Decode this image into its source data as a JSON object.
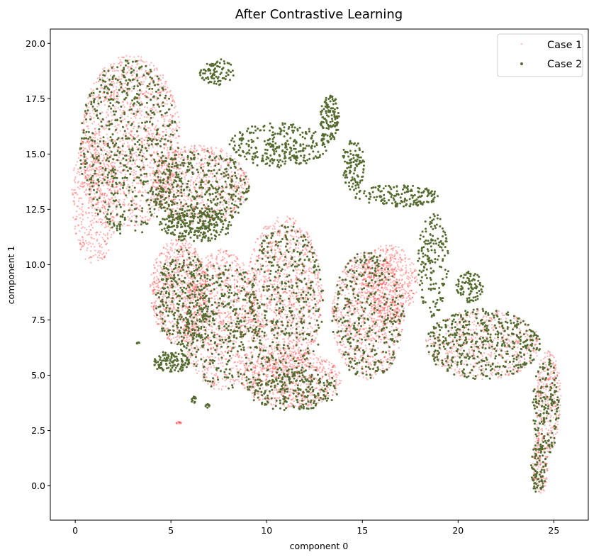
{
  "chart_data": {
    "type": "scatter",
    "title": "After Contrastive Learning",
    "xlabel": "component 0",
    "ylabel": "component 1",
    "xlim": [
      -1.3,
      26.8
    ],
    "ylim": [
      -1.55,
      20.65
    ],
    "xticks": [
      0,
      5,
      10,
      15,
      20,
      25
    ],
    "yticks": [
      0.0,
      2.5,
      5.0,
      7.5,
      10.0,
      12.5,
      15.0,
      17.5,
      20.0
    ],
    "xtick_labels": [
      "0",
      "5",
      "10",
      "15",
      "20",
      "25"
    ],
    "ytick_labels": [
      "0.0",
      "2.5",
      "5.0",
      "7.5",
      "10.0",
      "12.5",
      "15.0",
      "17.5",
      "20.0"
    ],
    "grid": false,
    "legend_position": "top-right",
    "series": [
      {
        "name": "Case 1",
        "color": "#ff0000",
        "marker": "dot",
        "regions": [
          {
            "cx": 2.9,
            "cy": 15.6,
            "rx": 2.6,
            "ry": 3.9,
            "n": 1300
          },
          {
            "cx": 1.0,
            "cy": 13.0,
            "rx": 1.2,
            "ry": 3.0,
            "n": 500
          },
          {
            "cx": 6.5,
            "cy": 13.6,
            "rx": 2.6,
            "ry": 1.8,
            "n": 700
          },
          {
            "cx": 5.4,
            "cy": 8.8,
            "rx": 1.5,
            "ry": 2.4,
            "n": 700
          },
          {
            "cx": 7.6,
            "cy": 7.5,
            "rx": 2.0,
            "ry": 3.2,
            "n": 900
          },
          {
            "cx": 10.9,
            "cy": 8.6,
            "rx": 2.0,
            "ry": 3.6,
            "n": 1100
          },
          {
            "cx": 11.3,
            "cy": 4.8,
            "rx": 2.6,
            "ry": 1.3,
            "n": 700
          },
          {
            "cx": 15.3,
            "cy": 7.7,
            "rx": 1.9,
            "ry": 2.9,
            "n": 900
          },
          {
            "cx": 16.4,
            "cy": 9.2,
            "rx": 1.5,
            "ry": 1.7,
            "n": 500
          },
          {
            "cx": 21.3,
            "cy": 6.4,
            "rx": 3.0,
            "ry": 1.6,
            "n": 1000
          },
          {
            "cx": 24.7,
            "cy": 3.8,
            "rx": 0.7,
            "ry": 2.3,
            "n": 300
          },
          {
            "cx": 24.3,
            "cy": 1.0,
            "rx": 0.4,
            "ry": 1.4,
            "n": 150
          },
          {
            "cx": 5.4,
            "cy": 2.85,
            "rx": 0.15,
            "ry": 0.05,
            "n": 15
          }
        ]
      },
      {
        "name": "Case 2",
        "color": "#556b2f",
        "marker": "dot",
        "regions": [
          {
            "cx": 2.8,
            "cy": 15.3,
            "rx": 2.6,
            "ry": 4.0,
            "n": 600
          },
          {
            "cx": 7.4,
            "cy": 18.7,
            "rx": 0.9,
            "ry": 0.6,
            "n": 90
          },
          {
            "cx": 6.5,
            "cy": 13.4,
            "rx": 2.6,
            "ry": 1.8,
            "n": 400
          },
          {
            "cx": 10.6,
            "cy": 15.4,
            "rx": 2.6,
            "ry": 1.0,
            "n": 300
          },
          {
            "cx": 13.3,
            "cy": 16.6,
            "rx": 0.5,
            "ry": 1.1,
            "n": 130
          },
          {
            "cx": 14.5,
            "cy": 14.5,
            "rx": 0.6,
            "ry": 1.2,
            "n": 110
          },
          {
            "cx": 16.8,
            "cy": 13.1,
            "rx": 2.2,
            "ry": 0.5,
            "n": 170
          },
          {
            "cx": 18.7,
            "cy": 10.0,
            "rx": 0.8,
            "ry": 2.4,
            "n": 170
          },
          {
            "cx": 6.3,
            "cy": 11.8,
            "rx": 1.9,
            "ry": 0.8,
            "n": 250
          },
          {
            "cx": 5.6,
            "cy": 8.4,
            "rx": 1.4,
            "ry": 2.3,
            "n": 300
          },
          {
            "cx": 7.8,
            "cy": 7.2,
            "rx": 2.0,
            "ry": 3.0,
            "n": 350
          },
          {
            "cx": 11.0,
            "cy": 8.2,
            "rx": 2.0,
            "ry": 3.6,
            "n": 400
          },
          {
            "cx": 11.3,
            "cy": 4.4,
            "rx": 2.5,
            "ry": 1.0,
            "n": 250
          },
          {
            "cx": 15.3,
            "cy": 7.7,
            "rx": 1.9,
            "ry": 2.9,
            "n": 350
          },
          {
            "cx": 21.3,
            "cy": 6.4,
            "rx": 3.0,
            "ry": 1.6,
            "n": 450
          },
          {
            "cx": 20.6,
            "cy": 9.0,
            "rx": 0.7,
            "ry": 0.7,
            "n": 90
          },
          {
            "cx": 24.6,
            "cy": 3.6,
            "rx": 0.7,
            "ry": 2.2,
            "n": 160
          },
          {
            "cx": 24.2,
            "cy": 0.8,
            "rx": 0.4,
            "ry": 1.2,
            "n": 80
          },
          {
            "cx": 5.0,
            "cy": 5.6,
            "rx": 1.0,
            "ry": 0.5,
            "n": 120
          },
          {
            "cx": 6.2,
            "cy": 3.9,
            "rx": 0.15,
            "ry": 0.15,
            "n": 12
          },
          {
            "cx": 6.9,
            "cy": 3.6,
            "rx": 0.12,
            "ry": 0.1,
            "n": 10
          },
          {
            "cx": 3.3,
            "cy": 6.45,
            "rx": 0.08,
            "ry": 0.04,
            "n": 6
          }
        ]
      }
    ]
  }
}
